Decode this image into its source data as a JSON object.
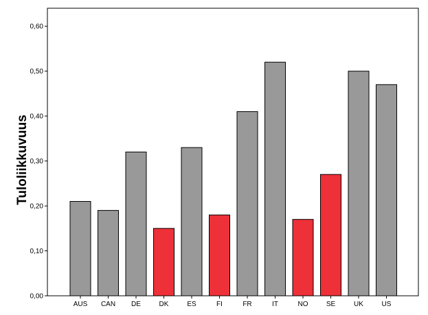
{
  "chart_data": {
    "type": "bar",
    "title": "",
    "xlabel": "",
    "ylabel": "Tuloliikkuvuus",
    "ylim": [
      0,
      0.64
    ],
    "yticks": [
      0,
      0.1,
      0.2,
      0.3,
      0.4,
      0.5,
      0.6
    ],
    "ytick_labels": [
      "0,00",
      "0,10",
      "0,20",
      "0,30",
      "0,40",
      "0,50",
      "0,60"
    ],
    "grid": false,
    "categories": [
      "AUS",
      "CAN",
      "DE",
      "DK",
      "ES",
      "FI",
      "FR",
      "IT",
      "NO",
      "SE",
      "UK",
      "US"
    ],
    "values": [
      0.21,
      0.19,
      0.32,
      0.15,
      0.33,
      0.18,
      0.41,
      0.52,
      0.17,
      0.27,
      0.5,
      0.47
    ],
    "highlighted": [
      "DK",
      "FI",
      "NO",
      "SE"
    ],
    "colors": {
      "default_bar": "#999999",
      "highlight_bar": "#ee3038",
      "bar_border": "#000000",
      "frame": "#000000",
      "background": "#ffffff"
    }
  }
}
